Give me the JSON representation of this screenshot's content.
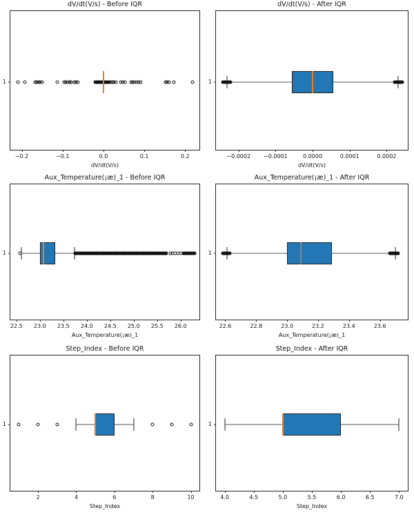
{
  "figure": {
    "background": "#ffffff",
    "box_fill": "#2277b4",
    "median_color": "#dd8330",
    "edge_color": "#1f1f1f",
    "whisker_color": "#555555"
  },
  "chart_data": [
    {
      "type": "box",
      "orientation": "horizontal",
      "title": "dV/dt(V/s) - Before IQR",
      "xlabel": "dV/dt(V/s)",
      "ytick": "1",
      "xlim": [
        -0.228,
        0.235
      ],
      "xticks": [
        -0.2,
        -0.1,
        0.0,
        0.1,
        0.2
      ],
      "xtick_labels": [
        "−0.2",
        "−0.1",
        "0.0",
        "0.1",
        "0.2"
      ],
      "box": {
        "q1": -0.001,
        "median": 0.0,
        "q3": 0.001,
        "whislo": -0.002,
        "whishi": 0.002,
        "caps": false
      },
      "fliers": [
        -0.21,
        -0.192,
        -0.168,
        -0.164,
        -0.159,
        -0.155,
        -0.151,
        -0.113,
        -0.096,
        -0.092,
        -0.088,
        -0.083,
        -0.079,
        -0.071,
        -0.067,
        -0.063,
        0.018,
        0.022,
        0.026,
        0.031,
        0.043,
        0.047,
        0.052,
        0.067,
        0.071,
        0.076,
        0.081,
        0.086,
        0.091,
        0.152,
        0.156,
        0.161,
        0.172,
        0.218
      ],
      "flier_bands": [
        {
          "from": -0.02,
          "to": 0.014,
          "n": 30
        }
      ]
    },
    {
      "type": "box",
      "orientation": "horizontal",
      "title": "dV/dt(V/s) - After IQR",
      "xlabel": "dV/dt(V/s)",
      "ytick": "1",
      "xlim": [
        -0.000261,
        0.000257
      ],
      "xticks": [
        -0.0002,
        -0.0001,
        0.0,
        0.0001,
        0.0002
      ],
      "xtick_labels": [
        "−0.0002",
        "−0.0001",
        "0.0000",
        "0.0001",
        "0.0002"
      ],
      "box": {
        "q1": -5.6e-05,
        "median": 0.0,
        "q3": 5.5e-05,
        "whislo": -0.000231,
        "whishi": 0.000231,
        "caps": true
      },
      "fliers": [],
      "flier_bands": [
        {
          "from": -0.000242,
          "to": -0.000222,
          "n": 10
        },
        {
          "from": 0.000222,
          "to": 0.000242,
          "n": 10
        }
      ]
    },
    {
      "type": "box",
      "orientation": "horizontal",
      "title": "Aux_Temperature(¡æ)_1 - Before IQR",
      "xlabel": "Aux_Temperature(¡æ)_1",
      "ytick": "1",
      "xlim": [
        22.37,
        26.4
      ],
      "xticks": [
        22.5,
        23.0,
        23.5,
        24.0,
        24.5,
        25.0,
        25.5,
        26.0
      ],
      "xtick_labels": [
        "22.5",
        "23.0",
        "23.5",
        "24.0",
        "24.5",
        "25.0",
        "25.5",
        "26.0"
      ],
      "box": {
        "q1": 23.0,
        "median": 23.07,
        "q3": 23.33,
        "whislo": 22.6,
        "whishi": 23.74,
        "caps": true
      },
      "fliers": [
        22.57,
        25.78,
        25.83,
        25.88,
        25.94,
        26.0
      ],
      "flier_bands": [
        {
          "from": 23.75,
          "to": 25.7,
          "n": 120
        },
        {
          "from": 26.06,
          "to": 26.3,
          "n": 14
        }
      ]
    },
    {
      "type": "box",
      "orientation": "horizontal",
      "title": "Aux_Temperature(¡æ)_1 - After IQR",
      "xlabel": "Aux_Temperature(¡æ)_1",
      "ytick": "1",
      "xlim": [
        22.54,
        23.78
      ],
      "xticks": [
        22.6,
        22.8,
        23.0,
        23.2,
        23.4,
        23.6
      ],
      "xtick_labels": [
        "22.6",
        "22.8",
        "23.0",
        "23.2",
        "23.4",
        "23.6"
      ],
      "median_color": "#7d8a93",
      "box": {
        "q1": 23.0,
        "median": 23.09,
        "q3": 23.29,
        "whislo": 22.61,
        "whishi": 23.7,
        "caps": true
      },
      "fliers": [],
      "flier_bands": [
        {
          "from": 22.585,
          "to": 22.63,
          "n": 10
        },
        {
          "from": 23.662,
          "to": 23.718,
          "n": 12
        }
      ]
    },
    {
      "type": "box",
      "orientation": "horizontal",
      "title": "Step_Index - Before IQR",
      "xlabel": "Step_Index",
      "ytick": "1",
      "xlim": [
        0.55,
        10.45
      ],
      "xticks": [
        2,
        4,
        6,
        8,
        10
      ],
      "xtick_labels": [
        "2",
        "4",
        "6",
        "8",
        "10"
      ],
      "box": {
        "q1": 5.0,
        "median": 5.0,
        "q3": 6.0,
        "whislo": 4.0,
        "whishi": 7.0,
        "caps": true
      },
      "fliers": [
        1.0,
        2.0,
        3.0,
        8.0,
        9.0,
        10.0
      ],
      "flier_bands": []
    },
    {
      "type": "box",
      "orientation": "horizontal",
      "title": "Step_Index - After IQR",
      "xlabel": "Step_Index",
      "ytick": "1",
      "xlim": [
        3.85,
        7.15
      ],
      "xticks": [
        4.0,
        4.5,
        5.0,
        5.5,
        6.0,
        6.5,
        7.0
      ],
      "xtick_labels": [
        "4.0",
        "4.5",
        "5.0",
        "5.5",
        "6.0",
        "6.5",
        "7.0"
      ],
      "box": {
        "q1": 5.0,
        "median": 5.0,
        "q3": 6.0,
        "whislo": 4.0,
        "whishi": 7.0,
        "caps": true
      },
      "fliers": [],
      "flier_bands": []
    }
  ]
}
